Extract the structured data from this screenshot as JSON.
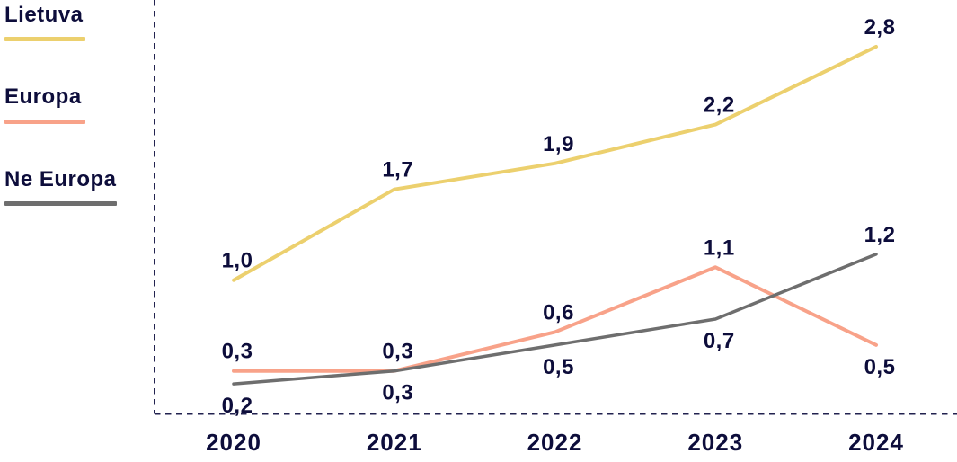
{
  "legend": {
    "items": [
      {
        "id": "lietuva",
        "label": "Lietuva",
        "color": "#ecd06e"
      },
      {
        "id": "europa",
        "label": "Europa",
        "color": "#f8a289"
      },
      {
        "id": "ne-europa",
        "label": "Ne Europa",
        "color": "#6e6e6e"
      }
    ]
  },
  "chart_data": {
    "type": "line",
    "x": [
      "2020",
      "2021",
      "2022",
      "2023",
      "2024"
    ],
    "series": [
      {
        "name": "Lietuva",
        "color": "#ecd06e",
        "values": [
          1.0,
          1.7,
          1.9,
          2.2,
          2.8
        ],
        "label_positions": [
          "above",
          "above",
          "above",
          "above",
          "above"
        ]
      },
      {
        "name": "Europa",
        "color": "#f8a289",
        "values": [
          0.3,
          0.3,
          0.6,
          1.1,
          0.5
        ],
        "label_positions": [
          "above",
          "above",
          "above",
          "above",
          "below"
        ]
      },
      {
        "name": "Ne Europa",
        "color": "#6e6e6e",
        "values": [
          0.2,
          0.3,
          0.5,
          0.7,
          1.2
        ],
        "label_positions": [
          "below",
          "below",
          "below",
          "below",
          "above"
        ]
      }
    ],
    "title": "",
    "xlabel": "",
    "ylabel": "",
    "ylim": [
      0,
      3.2
    ],
    "grid": false,
    "legend_position": "top-left",
    "axis_style": "dashed",
    "decimal_separator": ",",
    "text_color": "#0d0d3b",
    "axis_color": "#22224f"
  }
}
